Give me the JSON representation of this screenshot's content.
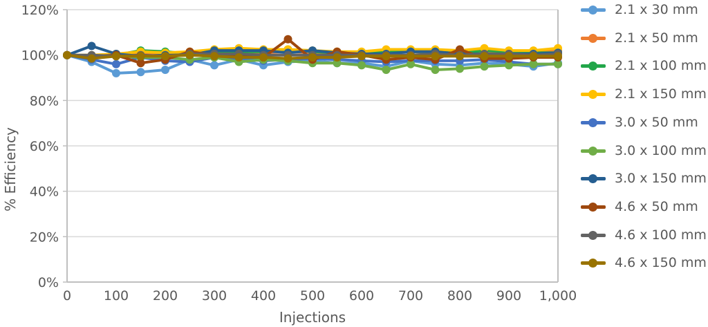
{
  "chart_data": {
    "type": "line",
    "title": "",
    "xlabel": "Injections",
    "ylabel": "% Efficiency",
    "xlim": [
      0,
      1000
    ],
    "ylim": [
      0,
      120
    ],
    "x_ticks": [
      0,
      100,
      200,
      300,
      400,
      500,
      600,
      700,
      800,
      900,
      1000
    ],
    "x_tick_labels": [
      "0",
      "100",
      "200",
      "300",
      "400",
      "500",
      "600",
      "700",
      "800",
      "900",
      "1,000"
    ],
    "y_ticks": [
      0,
      20,
      40,
      60,
      80,
      100,
      120
    ],
    "y_tick_labels": [
      "0%",
      "20%",
      "40%",
      "60%",
      "80%",
      "100%",
      "120%"
    ],
    "grid": "horizontal",
    "legend_position": "right",
    "x": [
      0,
      50,
      100,
      150,
      200,
      250,
      300,
      350,
      400,
      450,
      500,
      550,
      600,
      650,
      700,
      750,
      800,
      850,
      900,
      950,
      1000
    ],
    "series": [
      {
        "name": "2.1 x 30 mm",
        "color": "#5B9BD5",
        "values": [
          100,
          97,
          92,
          92.5,
          93.5,
          98,
          95.5,
          98,
          95.5,
          97,
          97.5,
          96.5,
          96.5,
          95,
          97.5,
          96,
          95.5,
          96.5,
          96,
          95,
          96.5
        ]
      },
      {
        "name": "2.1 x 50 mm",
        "color": "#ED7D31",
        "values": [
          100,
          99.5,
          100.5,
          101,
          100.5,
          101,
          101.5,
          101,
          101,
          101.5,
          101,
          101,
          100.5,
          101,
          101.5,
          101,
          101,
          101.5,
          101,
          101.5,
          102
        ]
      },
      {
        "name": "2.1 x 100 mm",
        "color": "#22A64A",
        "values": [
          100,
          99.5,
          100,
          102,
          101.5,
          100.5,
          101,
          101.5,
          101.5,
          102.5,
          101.5,
          101,
          101,
          101.5,
          101.5,
          101.5,
          101,
          102,
          101.5,
          101,
          101
        ]
      },
      {
        "name": "2.1 x 150 mm",
        "color": "#FFC000",
        "values": [
          100,
          100,
          100.5,
          101.5,
          101,
          101.5,
          102.5,
          103,
          102.5,
          102.5,
          102,
          101.5,
          101.5,
          102.5,
          102.5,
          102.5,
          102,
          103,
          102,
          102,
          103
        ]
      },
      {
        "name": "3.0 x 50 mm",
        "color": "#4472C4",
        "values": [
          100,
          98,
          96,
          99,
          97.5,
          97,
          99,
          98.5,
          97.5,
          98,
          98.5,
          98,
          97.5,
          97,
          97.5,
          97.5,
          97.5,
          98,
          97,
          96,
          96
        ]
      },
      {
        "name": "3.0 x 100 mm",
        "color": "#70AD47",
        "values": [
          100,
          99,
          99.5,
          99,
          99,
          98,
          99,
          97,
          98,
          97.5,
          96.5,
          96.5,
          95.5,
          93.5,
          96,
          93.5,
          94,
          95,
          95.5,
          96,
          96
        ]
      },
      {
        "name": "3.0 x 150 mm",
        "color": "#255E91",
        "values": [
          100,
          104,
          100.5,
          99.5,
          100,
          100,
          102,
          102,
          102,
          101,
          102,
          101,
          100.5,
          100.5,
          101.5,
          101.5,
          100.5,
          100.5,
          100.5,
          100.5,
          101
        ]
      },
      {
        "name": "4.6 x 50 mm",
        "color": "#9E480E",
        "values": [
          100,
          99.5,
          100,
          96.5,
          98,
          101.5,
          100,
          99.5,
          99,
          107,
          98,
          101.5,
          100,
          98,
          99,
          98,
          102.5,
          98.5,
          98.5,
          99,
          99
        ]
      },
      {
        "name": "4.6 x 100 mm",
        "color": "#636363",
        "values": [
          100,
          100,
          99.5,
          100,
          99.5,
          100.5,
          100.5,
          100.5,
          100,
          100,
          100,
          100,
          100,
          100,
          100,
          100.5,
          100,
          100.5,
          100.5,
          100,
          100.5
        ]
      },
      {
        "name": "4.6 x 150 mm",
        "color": "#997300",
        "values": [
          100,
          98.5,
          99.5,
          99.5,
          99.5,
          100,
          99.5,
          99,
          99,
          98.5,
          99,
          99,
          99.5,
          99.5,
          99.5,
          99.5,
          99.5,
          99.5,
          99.5,
          99.5,
          99.5
        ]
      }
    ]
  },
  "legend": {
    "items": [
      {
        "label": "2.1 x 30 mm"
      },
      {
        "label": "2.1 x 50 mm"
      },
      {
        "label": "2.1 x 100 mm"
      },
      {
        "label": "2.1 x 150 mm"
      },
      {
        "label": "3.0 x 50 mm"
      },
      {
        "label": "3.0 x 100 mm"
      },
      {
        "label": "3.0 x 150 mm"
      },
      {
        "label": "4.6 x 50 mm"
      },
      {
        "label": "4.6 x 100 mm"
      },
      {
        "label": "4.6 x 150 mm"
      }
    ]
  },
  "colors": {
    "gridline": "#D9D9D9",
    "axis": "#BFBFBF",
    "text": "#595959"
  }
}
